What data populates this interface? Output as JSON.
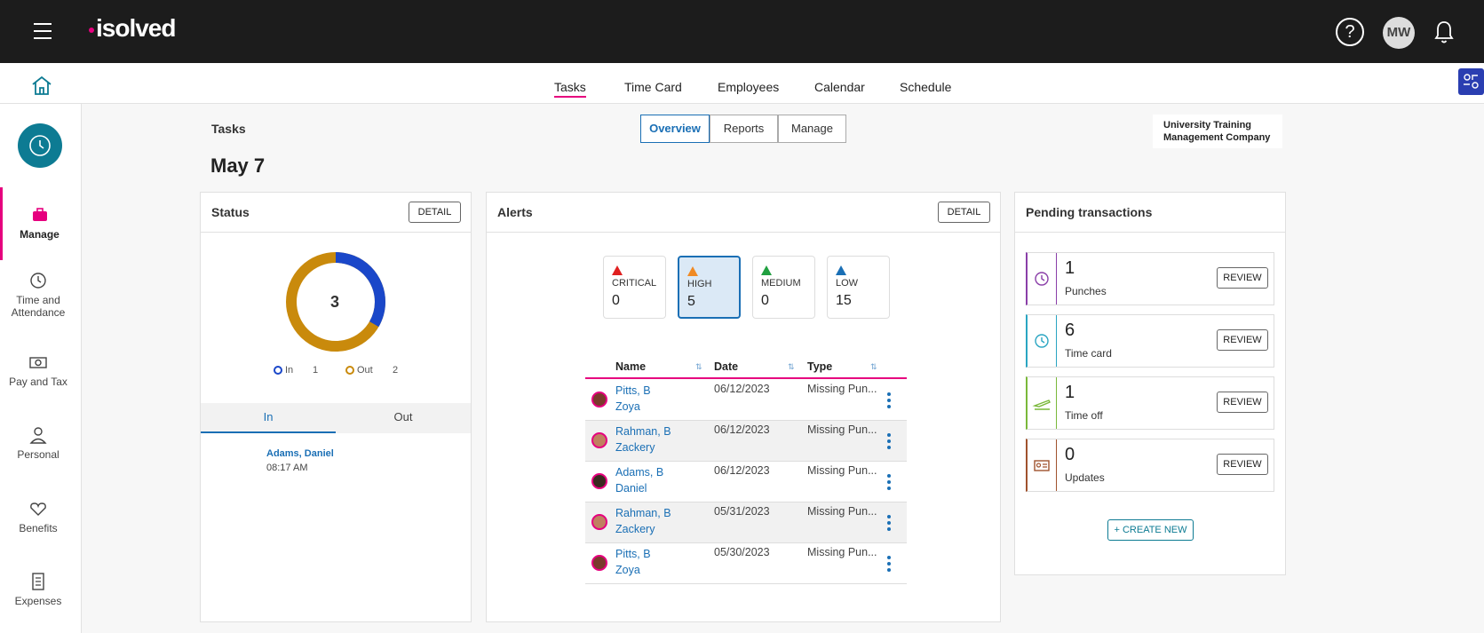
{
  "header": {
    "logo": "isolved",
    "help_icon": "?",
    "avatar_initials": "MW"
  },
  "nav": {
    "tabs": [
      "Tasks",
      "Time Card",
      "Employees",
      "Calendar",
      "Schedule"
    ],
    "active": "Tasks"
  },
  "sidebar": {
    "items": [
      {
        "label": "Manage",
        "icon": "briefcase-icon"
      },
      {
        "label": "Time and Attendance",
        "icon": "clock-icon"
      },
      {
        "label": "Pay and Tax",
        "icon": "money-icon"
      },
      {
        "label": "Personal",
        "icon": "person-icon"
      },
      {
        "label": "Benefits",
        "icon": "heart-icon"
      },
      {
        "label": "Expenses",
        "icon": "receipt-icon"
      }
    ]
  },
  "page": {
    "breadcrumb": "Tasks",
    "date": "May 7",
    "company": "University Training Management Company",
    "segments": [
      "Overview",
      "Reports",
      "Manage"
    ]
  },
  "status": {
    "title": "Status",
    "detail": "DETAIL",
    "total": "3",
    "legend_in": "In",
    "legend_in_count": "1",
    "legend_out": "Out",
    "legend_out_count": "2",
    "tab_in": "In",
    "tab_out": "Out",
    "entry_name": "Adams, Daniel",
    "entry_time": "08:17 AM",
    "in_fraction": 0.3333,
    "colors": {
      "in": "#1a47c9",
      "out": "#c98a0c"
    }
  },
  "alerts": {
    "title": "Alerts",
    "detail": "DETAIL",
    "cards": [
      {
        "label": "CRITICAL",
        "count": "0",
        "color": "#e02020"
      },
      {
        "label": "HIGH",
        "count": "5",
        "color": "#f08a24"
      },
      {
        "label": "MEDIUM",
        "count": "0",
        "color": "#20a040"
      },
      {
        "label": "LOW",
        "count": "15",
        "color": "#1a6fb5"
      }
    ],
    "columns": [
      "Name",
      "Date",
      "Type"
    ],
    "rows": [
      {
        "name1": "Pitts, B",
        "name2": "Zoya",
        "date": "06/12/2023",
        "type": "Missing Pun..."
      },
      {
        "name1": "Rahman, B",
        "name2": "Zackery",
        "date": "06/12/2023",
        "type": "Missing Pun..."
      },
      {
        "name1": "Adams, B",
        "name2": "Daniel",
        "date": "06/12/2023",
        "type": "Missing Pun..."
      },
      {
        "name1": "Rahman, B",
        "name2": "Zackery",
        "date": "05/31/2023",
        "type": "Missing Pun..."
      },
      {
        "name1": "Pitts, B",
        "name2": "Zoya",
        "date": "05/30/2023",
        "type": "Missing Pun..."
      }
    ]
  },
  "pending": {
    "title": "Pending transactions",
    "items": [
      {
        "count": "1",
        "label": "Punches",
        "color": "#8a3ea8"
      },
      {
        "count": "6",
        "label": "Time card",
        "color": "#2aa5c2"
      },
      {
        "count": "1",
        "label": "Time off",
        "color": "#7ab83a"
      },
      {
        "count": "0",
        "label": "Updates",
        "color": "#a0522d"
      }
    ],
    "review": "REVIEW",
    "create": "+ CREATE NEW"
  }
}
